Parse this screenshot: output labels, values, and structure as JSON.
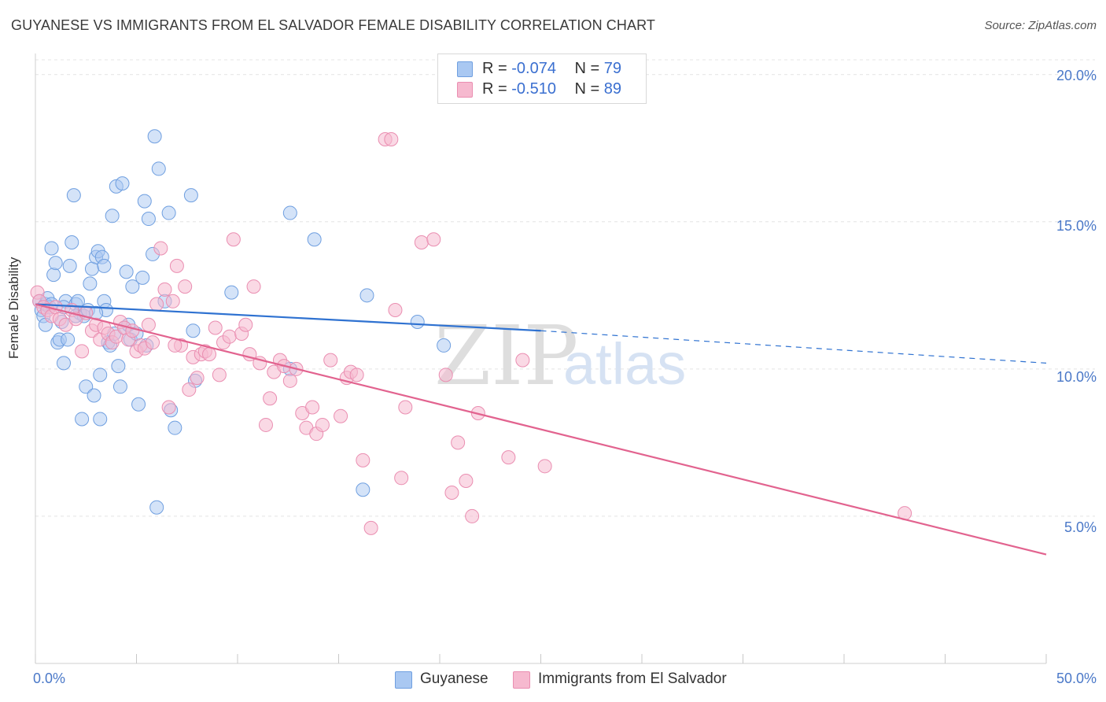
{
  "title": "GUYANESE VS IMMIGRANTS FROM EL SALVADOR FEMALE DISABILITY CORRELATION CHART",
  "source": "Source: ZipAtlas.com",
  "watermark": {
    "zip": "ZIP",
    "atlas": "atlas"
  },
  "colors": {
    "blue_fill": "#a9c8f2",
    "blue_stroke": "#6f9fe0",
    "blue_line": "#2f72d1",
    "pink_fill": "#f6b9cf",
    "pink_stroke": "#ea8eb1",
    "pink_line": "#e2638f",
    "tick_text": "#4a78c8",
    "grid": "#e4e4e4"
  },
  "legend": {
    "series1": {
      "r_label": "R = ",
      "r_value": "-0.074",
      "n_label": "N = ",
      "n_value": "79"
    },
    "series2": {
      "r_label": "R = ",
      "r_value": "-0.510",
      "n_label": "N = ",
      "n_value": "89"
    }
  },
  "chart_data": {
    "type": "scatter",
    "title": "GUYANESE VS IMMIGRANTS FROM EL SALVADOR FEMALE DISABILITY CORRELATION CHART",
    "xlabel": "",
    "ylabel": "Female Disability",
    "xlim": [
      0,
      50
    ],
    "ylim": [
      0,
      20.5
    ],
    "x_tick_labels": [
      "0.0%",
      "50.0%"
    ],
    "y_ticks": [
      {
        "value": 5,
        "label": "5.0%"
      },
      {
        "value": 10,
        "label": "10.0%"
      },
      {
        "value": 15,
        "label": "15.0%"
      },
      {
        "value": 20,
        "label": "20.0%"
      }
    ],
    "grid": true,
    "legend_position": "bottom",
    "series": [
      {
        "name": "Guyanese",
        "color": "blue",
        "R": -0.074,
        "N": 79,
        "trend": {
          "x0": 0,
          "y0": 12.2,
          "x1": 25,
          "y1": 11.3,
          "dashed_to_x": 50,
          "dashed_to_y": 10.2
        },
        "points": [
          [
            0.2,
            12.3
          ],
          [
            0.3,
            12.0
          ],
          [
            0.4,
            11.8
          ],
          [
            0.5,
            12.2
          ],
          [
            0.5,
            11.5
          ],
          [
            0.6,
            12.4
          ],
          [
            0.7,
            12.1
          ],
          [
            0.8,
            14.1
          ],
          [
            0.9,
            13.2
          ],
          [
            1.0,
            13.6
          ],
          [
            1.1,
            10.9
          ],
          [
            1.2,
            11.0
          ],
          [
            1.3,
            11.6
          ],
          [
            1.4,
            10.2
          ],
          [
            1.5,
            12.3
          ],
          [
            1.6,
            11.0
          ],
          [
            1.7,
            13.5
          ],
          [
            1.8,
            14.3
          ],
          [
            1.9,
            15.9
          ],
          [
            2.0,
            12.2
          ],
          [
            2.1,
            12.3
          ],
          [
            2.2,
            11.9
          ],
          [
            2.3,
            8.3
          ],
          [
            2.4,
            11.8
          ],
          [
            2.5,
            9.4
          ],
          [
            2.6,
            12.0
          ],
          [
            2.7,
            12.9
          ],
          [
            2.8,
            13.4
          ],
          [
            2.9,
            9.1
          ],
          [
            3.0,
            13.8
          ],
          [
            3.1,
            14.0
          ],
          [
            3.2,
            9.8
          ],
          [
            3.2,
            8.3
          ],
          [
            3.3,
            13.8
          ],
          [
            3.4,
            13.5
          ],
          [
            3.4,
            12.3
          ],
          [
            3.5,
            12.0
          ],
          [
            3.6,
            10.9
          ],
          [
            3.7,
            10.8
          ],
          [
            3.8,
            15.2
          ],
          [
            3.9,
            11.2
          ],
          [
            4.0,
            16.2
          ],
          [
            4.1,
            10.1
          ],
          [
            4.2,
            9.4
          ],
          [
            4.3,
            16.3
          ],
          [
            4.4,
            11.4
          ],
          [
            4.5,
            13.3
          ],
          [
            4.6,
            11.5
          ],
          [
            4.7,
            11.0
          ],
          [
            4.8,
            12.8
          ],
          [
            5.0,
            11.2
          ],
          [
            5.1,
            8.8
          ],
          [
            5.3,
            13.1
          ],
          [
            5.4,
            15.7
          ],
          [
            5.5,
            10.8
          ],
          [
            5.6,
            15.1
          ],
          [
            5.8,
            13.9
          ],
          [
            5.9,
            17.9
          ],
          [
            6.0,
            5.3
          ],
          [
            6.1,
            16.8
          ],
          [
            6.4,
            12.3
          ],
          [
            6.6,
            15.3
          ],
          [
            6.7,
            8.6
          ],
          [
            6.9,
            8.0
          ],
          [
            7.7,
            15.9
          ],
          [
            7.8,
            11.3
          ],
          [
            7.9,
            9.6
          ],
          [
            9.7,
            12.6
          ],
          [
            12.6,
            15.3
          ],
          [
            12.6,
            10.0
          ],
          [
            13.8,
            14.4
          ],
          [
            16.2,
            5.9
          ],
          [
            16.4,
            12.5
          ],
          [
            18.9,
            11.6
          ],
          [
            20.2,
            10.8
          ],
          [
            1.4,
            12.1
          ],
          [
            2.0,
            11.8
          ],
          [
            0.8,
            12.2
          ],
          [
            3.0,
            11.9
          ]
        ]
      },
      {
        "name": "Immigrants from El Salvador",
        "color": "pink",
        "R": -0.51,
        "N": 89,
        "trend": {
          "x0": 0,
          "y0": 12.2,
          "x1": 50,
          "y1": 3.7
        },
        "points": [
          [
            0.1,
            12.6
          ],
          [
            0.2,
            12.3
          ],
          [
            0.4,
            12.1
          ],
          [
            0.6,
            12.0
          ],
          [
            0.8,
            11.8
          ],
          [
            1.0,
            12.1
          ],
          [
            1.2,
            11.7
          ],
          [
            1.5,
            11.5
          ],
          [
            1.8,
            12.0
          ],
          [
            2.0,
            11.7
          ],
          [
            2.3,
            10.6
          ],
          [
            2.5,
            11.9
          ],
          [
            2.8,
            11.3
          ],
          [
            3.0,
            11.5
          ],
          [
            3.2,
            11.0
          ],
          [
            3.4,
            11.4
          ],
          [
            3.6,
            11.2
          ],
          [
            3.8,
            10.9
          ],
          [
            4.0,
            11.1
          ],
          [
            4.2,
            11.6
          ],
          [
            4.4,
            11.4
          ],
          [
            4.6,
            11.0
          ],
          [
            4.8,
            11.3
          ],
          [
            5.0,
            10.6
          ],
          [
            5.2,
            10.8
          ],
          [
            5.4,
            10.7
          ],
          [
            5.6,
            11.5
          ],
          [
            5.8,
            10.9
          ],
          [
            6.0,
            12.2
          ],
          [
            6.2,
            14.1
          ],
          [
            6.4,
            12.7
          ],
          [
            6.6,
            8.7
          ],
          [
            6.8,
            12.3
          ],
          [
            7.0,
            13.5
          ],
          [
            7.2,
            10.8
          ],
          [
            7.4,
            12.8
          ],
          [
            7.6,
            9.3
          ],
          [
            7.8,
            10.4
          ],
          [
            8.0,
            9.7
          ],
          [
            8.2,
            10.5
          ],
          [
            8.4,
            10.6
          ],
          [
            8.6,
            10.5
          ],
          [
            8.9,
            11.4
          ],
          [
            9.1,
            9.8
          ],
          [
            9.3,
            10.9
          ],
          [
            9.6,
            11.1
          ],
          [
            9.8,
            14.4
          ],
          [
            10.2,
            11.2
          ],
          [
            10.4,
            11.5
          ],
          [
            10.6,
            10.5
          ],
          [
            10.8,
            12.8
          ],
          [
            11.1,
            10.2
          ],
          [
            11.4,
            8.1
          ],
          [
            11.6,
            9.0
          ],
          [
            11.8,
            9.9
          ],
          [
            12.1,
            10.3
          ],
          [
            12.3,
            10.1
          ],
          [
            12.6,
            9.6
          ],
          [
            12.9,
            10.0
          ],
          [
            13.2,
            8.5
          ],
          [
            13.4,
            8.0
          ],
          [
            13.7,
            8.7
          ],
          [
            13.9,
            7.8
          ],
          [
            14.2,
            8.1
          ],
          [
            14.6,
            10.3
          ],
          [
            15.1,
            8.4
          ],
          [
            15.4,
            9.7
          ],
          [
            15.6,
            9.9
          ],
          [
            15.9,
            9.8
          ],
          [
            16.2,
            6.9
          ],
          [
            16.6,
            4.6
          ],
          [
            17.3,
            17.8
          ],
          [
            17.6,
            17.8
          ],
          [
            17.8,
            12.0
          ],
          [
            18.1,
            6.3
          ],
          [
            18.3,
            8.7
          ],
          [
            19.1,
            14.3
          ],
          [
            19.7,
            14.4
          ],
          [
            20.3,
            9.8
          ],
          [
            20.6,
            5.8
          ],
          [
            20.9,
            7.5
          ],
          [
            21.3,
            6.2
          ],
          [
            21.6,
            5.0
          ],
          [
            21.9,
            8.5
          ],
          [
            23.4,
            7.0
          ],
          [
            24.1,
            10.3
          ],
          [
            25.2,
            6.7
          ],
          [
            43.0,
            5.1
          ],
          [
            6.9,
            10.8
          ]
        ]
      }
    ]
  }
}
